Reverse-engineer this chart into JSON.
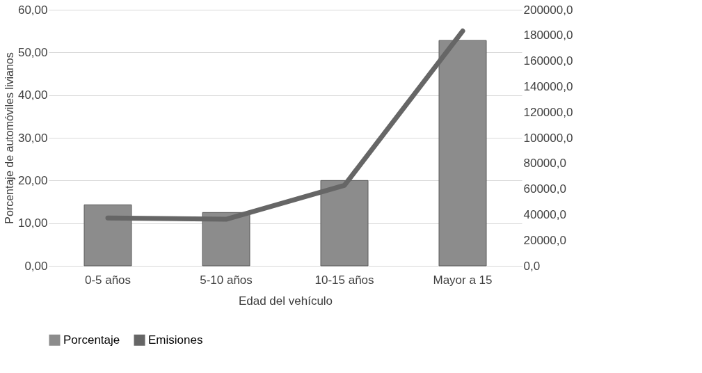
{
  "chart_data": {
    "type": "bar",
    "xlabel": "Edad del vehículo",
    "ylabel": "Porcentaje de automóviles livianos",
    "categories": [
      "0-5 años",
      "5-10 años",
      "10-15 años",
      "Mayor a 15"
    ],
    "series": [
      {
        "name": "Porcentaje",
        "color": "#8c8c8c",
        "values": [
          14.3,
          12.5,
          20.0,
          52.8
        ]
      },
      {
        "name": "Emisiones",
        "type": "line",
        "axis": "y2",
        "color": "#666666",
        "values": [
          37400,
          36400,
          62800,
          183400
        ]
      }
    ],
    "ylim": [
      0,
      60
    ],
    "yticks": [
      {
        "value": 0,
        "label": "0,00"
      },
      {
        "value": 10,
        "label": "10,00"
      },
      {
        "value": 20,
        "label": "20,00"
      },
      {
        "value": 30,
        "label": "30,00"
      },
      {
        "value": 40,
        "label": "40,00"
      },
      {
        "value": 50,
        "label": "50,00"
      },
      {
        "value": 60,
        "label": "60,00"
      }
    ],
    "y2lim": [
      0,
      200000
    ],
    "y2ticks": [
      {
        "value": 0,
        "label": "0,0"
      },
      {
        "value": 20000,
        "label": "20000,0"
      },
      {
        "value": 40000,
        "label": "40000,0"
      },
      {
        "value": 60000,
        "label": "60000,0"
      },
      {
        "value": 80000,
        "label": "80000,0"
      },
      {
        "value": 100000,
        "label": "100000,0"
      },
      {
        "value": 120000,
        "label": "120000,0"
      },
      {
        "value": 140000,
        "label": "140000,0"
      },
      {
        "value": 160000,
        "label": "160000,0"
      },
      {
        "value": 180000,
        "label": "180000,0"
      },
      {
        "value": 200000,
        "label": "200000,0"
      }
    ],
    "grid": "y",
    "legend": "bottom",
    "line_style": "solid",
    "marker": "none"
  }
}
